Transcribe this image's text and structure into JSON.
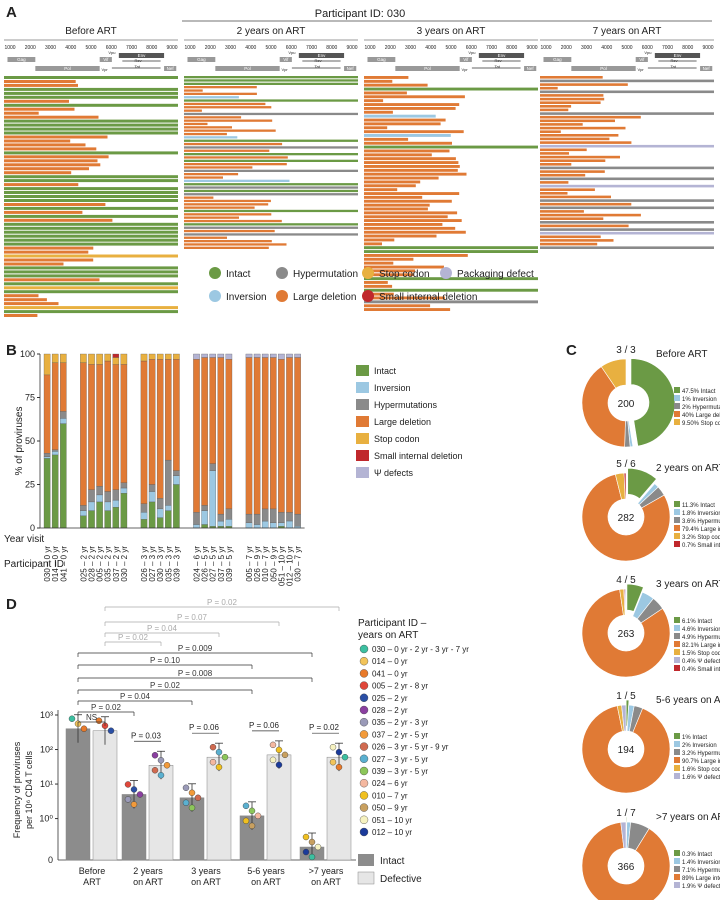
{
  "panel_labels": {
    "a": "A",
    "b": "B",
    "c": "C",
    "d": "D"
  },
  "colors": {
    "intact": "#6b9a45",
    "inversion": "#9cc8e2",
    "hypermutation": "#8a8a8a",
    "stop_codon": "#e8b040",
    "packaging_defect": "#b4b4d4",
    "large_deletion": "#e07a35",
    "small_internal_deletion": "#c0282c"
  },
  "panel_a": {
    "title": "Participant ID: 030",
    "columns": [
      "Before ART",
      "2 years on ART",
      "3 years on ART",
      "7 years on ART"
    ],
    "axis_ticks": [
      "1000",
      "2000",
      "3000",
      "4000",
      "5000",
      "6000",
      "7000",
      "8000",
      "9000"
    ],
    "gene_labels": [
      "Gag",
      "Vif",
      "Vpu",
      "Env",
      "Rev",
      "Tat",
      "Pol",
      "Vpr",
      "Nef"
    ],
    "legend": [
      "Intact",
      "Hypermutation",
      "Stop codon",
      "Packaging defect",
      "Inversion",
      "Large deletion",
      "Small internal deletion"
    ]
  },
  "chart_data": [
    {
      "type": "bar",
      "title": "",
      "ylabel": "% of proviruses",
      "ylim": [
        0,
        100
      ],
      "yticks": [
        "0",
        "25",
        "50",
        "75",
        "100"
      ],
      "row_labels": [
        "Year visit",
        "Participant ID"
      ],
      "groups": [
        [
          "030 – 0 yr",
          "014 – 0 yr",
          "041 – 0 yr"
        ],
        [
          "025 – 2 yr",
          "028 – 2 yr",
          "005 – 2 yr",
          "035 – 2 yr",
          "037 – 2 yr",
          "030 – 2 yr"
        ],
        [
          "026 – 3 yr",
          "027 – 3 yr",
          "030 – 3 yr",
          "035 – 3 yr",
          "039 – 3 yr"
        ],
        [
          "024 – 6 yr",
          "026 – 5 yr",
          "027 – 5 yr",
          "037 – 5 yr",
          "039 – 5 yr"
        ],
        [
          "005 – 7 yr",
          "026 – 9 yr",
          "010 – 7 yr",
          "050 – 9 yr",
          "051 – 10 yr",
          "012 – 10 yr",
          "030 – 7 yr"
        ]
      ],
      "series_names": [
        "Intact",
        "Inversion",
        "Hypermutations",
        "Large deletion",
        "Stop codon",
        "Small internal deletion",
        "Ψ defects"
      ],
      "values": [
        [
          40,
          1,
          2,
          45,
          12,
          0,
          0
        ],
        [
          42,
          2,
          1,
          50,
          5,
          0,
          0
        ],
        [
          60,
          3,
          4,
          28,
          5,
          0,
          0
        ],
        [
          7,
          3,
          3,
          82,
          5,
          0,
          0
        ],
        [
          10,
          5,
          7,
          72,
          6,
          0,
          0
        ],
        [
          15,
          4,
          5,
          70,
          6,
          0,
          0
        ],
        [
          10,
          5,
          6,
          75,
          4,
          0,
          0
        ],
        [
          12,
          4,
          6,
          72,
          4,
          2,
          0
        ],
        [
          20,
          3,
          3,
          68,
          6,
          0,
          0
        ],
        [
          5,
          4,
          5,
          82,
          4,
          0,
          0
        ],
        [
          15,
          6,
          4,
          72,
          3,
          0,
          0
        ],
        [
          6,
          5,
          6,
          80,
          3,
          0,
          0
        ],
        [
          10,
          3,
          26,
          58,
          3,
          0,
          0
        ],
        [
          25,
          5,
          3,
          64,
          3,
          0,
          0
        ],
        [
          0,
          2,
          7,
          88,
          0,
          0,
          3
        ],
        [
          2,
          8,
          3,
          85,
          0,
          0,
          2
        ],
        [
          1,
          32,
          4,
          61,
          0,
          0,
          2
        ],
        [
          1,
          3,
          4,
          90,
          0,
          0,
          2
        ],
        [
          1,
          4,
          6,
          86,
          0,
          0,
          3
        ],
        [
          0,
          3,
          5,
          90,
          0,
          0,
          2
        ],
        [
          0,
          2,
          6,
          90,
          0,
          0,
          2
        ],
        [
          0,
          4,
          7,
          87,
          0,
          0,
          2
        ],
        [
          0,
          3,
          8,
          87,
          0,
          0,
          2
        ],
        [
          1,
          2,
          6,
          88,
          0,
          0,
          3
        ],
        [
          0,
          4,
          5,
          89,
          0,
          0,
          2
        ],
        [
          0,
          1,
          7,
          90,
          0,
          0,
          2
        ]
      ],
      "legend": [
        "Intact",
        "Inversion",
        "Hypermutations",
        "Large deletion",
        "Stop codon",
        "Small internal deletion",
        "Ψ defects"
      ]
    },
    {
      "type": "pie",
      "donuts": [
        {
          "title": "Before ART",
          "n": "200",
          "ratio": "3 / 3",
          "values": [
            47.5,
            1,
            2,
            40,
            9.5,
            0,
            0
          ],
          "legend": [
            "47.5% Intact",
            "1% Inversion",
            "2% Hypermutations",
            "40% Large deletion",
            "9.50% Stop codons"
          ]
        },
        {
          "title": "2 years on ART",
          "n": "282",
          "ratio": "5 / 6",
          "values": [
            11.3,
            1.8,
            3.6,
            79.4,
            3.2,
            0.7,
            0
          ],
          "legend": [
            "11.3% Intact",
            "1.8% Inversion",
            "3.6% Hypermutations",
            "79.4% Large internal deletion",
            "3.2% Stop codons",
            "0.7% Small internal deletion"
          ]
        },
        {
          "title": "3 years on ART",
          "n": "263",
          "ratio": "4 / 5",
          "values": [
            6.1,
            4.6,
            4.9,
            82.1,
            1.5,
            0.4,
            0.4
          ],
          "legend": [
            "6.1% Intact",
            "4.6% Inversion",
            "4.9% Hypermutations",
            "82.1% Large internal deletion",
            "1.5% Stop codons",
            "0.4% Ψ defects",
            "0.4% Small internal deletion"
          ]
        },
        {
          "title": "5-6 years on ART",
          "n": "194",
          "ratio": "1 / 5",
          "values": [
            1,
            2,
            3.2,
            90.7,
            1.6,
            0,
            1.6
          ],
          "legend": [
            "1% Intact",
            "2% Inversion",
            "3.2% Hypermutations",
            "90.7% Large internal deletion",
            "1.6% Stop codon",
            "1.6% Ψ defects"
          ]
        },
        {
          "title": ">7 years on ART",
          "n": "366",
          "ratio": "1 / 7",
          "values": [
            0.3,
            1.4,
            7.1,
            89,
            0,
            0,
            1.9
          ],
          "legend": [
            "0.3% Intact",
            "1.4% Inversion",
            "7.1% Hypermutations",
            "89% Large internal deletion",
            "1.9% Ψ defects"
          ]
        }
      ]
    },
    {
      "type": "bar",
      "ylabel": "Frequency of proviruses per 10⁶ CD4 T cells",
      "yscale": "log",
      "yticks": [
        "0",
        "10⁰",
        "10¹",
        "10²",
        "10³"
      ],
      "categories": [
        "Before ART",
        "2 years on ART",
        "3 years on ART",
        "5-6 years on ART",
        ">7 years on ART"
      ],
      "series": [
        {
          "name": "Intact",
          "values": [
            400,
            5,
            4,
            1.2,
            0.15
          ]
        },
        {
          "name": "Defective",
          "values": [
            350,
            35,
            60,
            70,
            60
          ]
        }
      ],
      "comparisons": [
        {
          "label": "P = 0.02",
          "style": "light"
        },
        {
          "label": "P = 0.07",
          "style": "light"
        },
        {
          "label": "P = 0.04",
          "style": "light"
        },
        {
          "label": "P = 0.02",
          "style": "light"
        },
        {
          "label": "P = 0.009",
          "style": "dark"
        },
        {
          "label": "P = 0.10",
          "style": "dark"
        },
        {
          "label": "P = 0.008",
          "style": "dark"
        },
        {
          "label": "P = 0.02",
          "style": "dark"
        },
        {
          "label": "P = 0.04",
          "style": "dark"
        },
        {
          "label": "P = 0.02",
          "style": "dark"
        },
        {
          "label": "NS",
          "style": "dark"
        }
      ],
      "pair_labels": [
        "P = 0.03",
        "P = 0.06",
        "P = 0.06",
        "P = 0.02"
      ],
      "participants_title": "Participant ID –\nyears on ART",
      "participants": [
        {
          "label": "030 – 0 yr - 2 yr - 3 yr - 7 yr",
          "color": "#3cbfa0"
        },
        {
          "label": "014 – 0 yr",
          "color": "#f2c45a"
        },
        {
          "label": "041 – 0 yr",
          "color": "#e87a2a"
        },
        {
          "label": "005 – 2 yr - 8 yr",
          "color": "#e0473a"
        },
        {
          "label": "025 – 2 yr",
          "color": "#2a4fa5"
        },
        {
          "label": "028 – 2 yr",
          "color": "#8a3fa0"
        },
        {
          "label": "035 – 2 yr - 3 yr",
          "color": "#9a9ab8"
        },
        {
          "label": "037 – 2 yr - 5 yr",
          "color": "#f29a3a"
        },
        {
          "label": "026 – 3 yr - 5 yr - 9 yr",
          "color": "#d06a50"
        },
        {
          "label": "027 – 3 yr - 5 yr",
          "color": "#5ab0d0"
        },
        {
          "label": "039 – 3 yr - 5 yr",
          "color": "#8cc65a"
        },
        {
          "label": "024 – 6 yr",
          "color": "#f4b8a0"
        },
        {
          "label": "010 – 7 yr",
          "color": "#f0c020"
        },
        {
          "label": "050 – 9 yr",
          "color": "#c8a060"
        },
        {
          "label": "051 – 10 yr",
          "color": "#f6f2c0"
        },
        {
          "label": "012 – 10 yr",
          "color": "#1a3a9a"
        }
      ],
      "legend": [
        "Intact",
        "Defective"
      ]
    }
  ]
}
